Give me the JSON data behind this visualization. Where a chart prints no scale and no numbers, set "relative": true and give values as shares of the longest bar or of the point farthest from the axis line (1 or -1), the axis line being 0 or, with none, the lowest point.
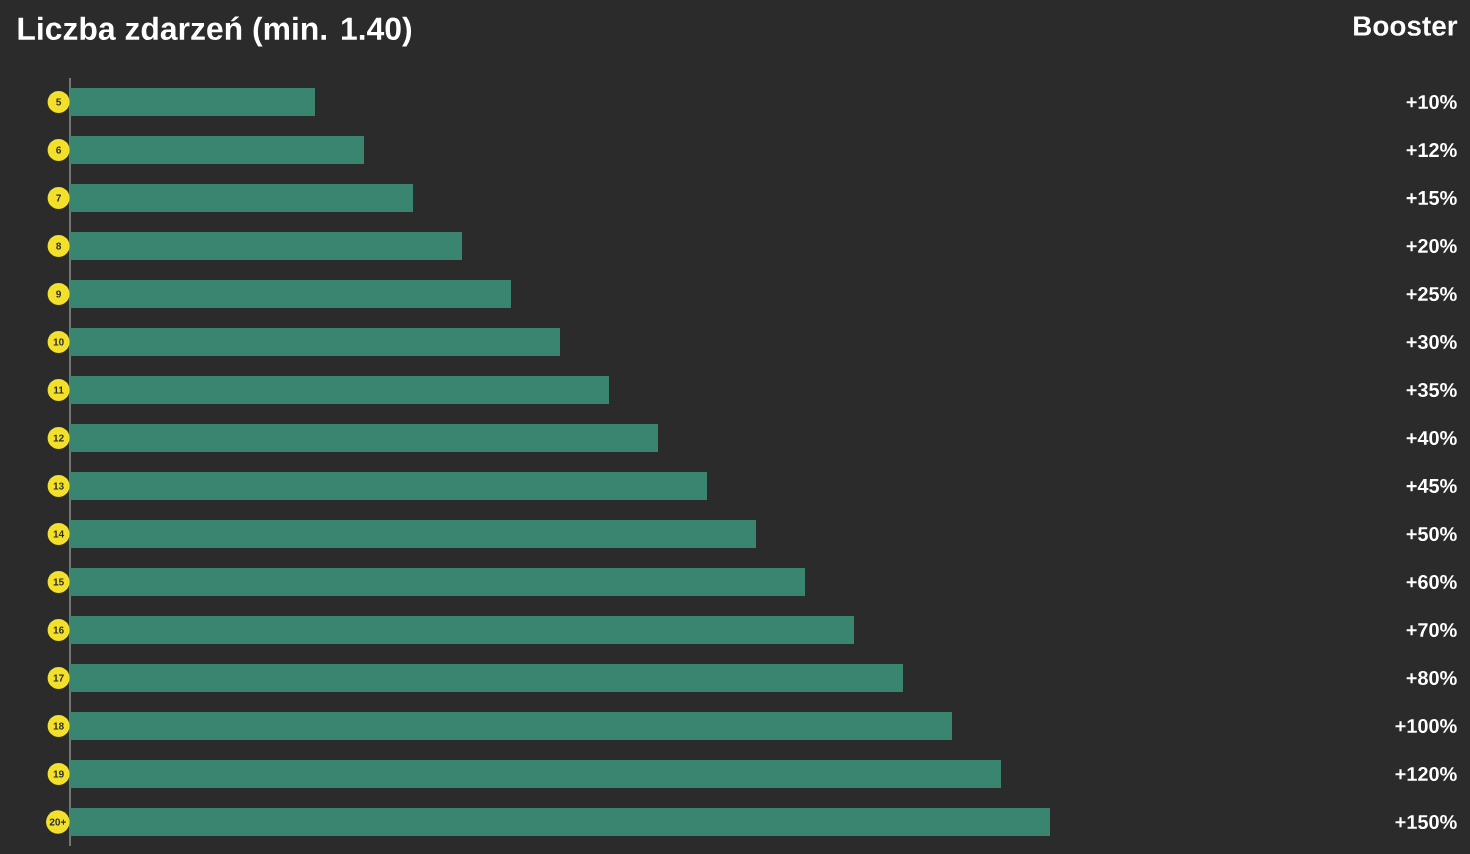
{
  "chart_data": {
    "type": "bar",
    "orientation": "horizontal",
    "relative": true,
    "title": "Liczba zdarzeń (min. 1.40)",
    "annotations": [
      "Booster",
      "+10%",
      "+12%",
      "+15%",
      "+20%",
      "+25%",
      "+30%",
      "+35%",
      "+40%",
      "+45%",
      "+50%",
      "+60%",
      "+70%",
      "+80%",
      "+100%",
      "+120%",
      "+150%"
    ],
    "categories": [
      "5",
      "6",
      "7",
      "8",
      "9",
      "10",
      "11",
      "12",
      "13",
      "14",
      "15",
      "16",
      "17",
      "18",
      "19",
      "20+"
    ],
    "values": [
      0.25,
      0.3,
      0.35,
      0.4,
      0.45,
      0.5,
      0.55,
      0.6,
      0.65,
      0.7,
      0.75,
      0.8,
      0.85,
      0.9,
      0.95,
      1.0
    ],
    "color": "#3a8570"
  }
}
